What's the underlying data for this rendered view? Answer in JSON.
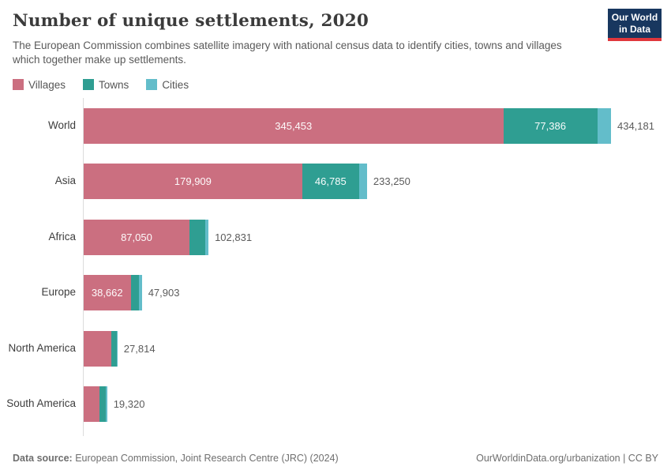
{
  "header": {
    "title": "Number of unique settlements, 2020",
    "subtitle": "The European Commission combines satellite imagery with national census data to identify cities, towns and villages which together make up settlements."
  },
  "logo": {
    "line1": "Our World",
    "line2": "in Data"
  },
  "legend": {
    "items": [
      {
        "label": "Villages",
        "color": "#cb6f80"
      },
      {
        "label": "Towns",
        "color": "#2f9e92"
      },
      {
        "label": "Cities",
        "color": "#63bdca"
      }
    ]
  },
  "colors": {
    "villages": "#cb6f80",
    "towns": "#2f9e92",
    "cities": "#63bdca",
    "axis_line": "#dcdcdc",
    "logo_navy": "#18375f",
    "logo_red": "#e0373c"
  },
  "chart_data": {
    "type": "bar",
    "orientation": "horizontal",
    "stacked": true,
    "title": "Number of unique settlements, 2020",
    "categories": [
      "World",
      "Asia",
      "Africa",
      "Europe",
      "North America",
      "South America"
    ],
    "series": [
      {
        "name": "Villages",
        "color": "#cb6f80",
        "values": [
          345453,
          179909,
          87050,
          38662,
          22700,
          13200
        ]
      },
      {
        "name": "Towns",
        "color": "#2f9e92",
        "values": [
          77386,
          46785,
          12900,
          7000,
          4600,
          4900
        ]
      },
      {
        "name": "Cities",
        "color": "#63bdca",
        "values": [
          11342,
          6556,
          2881,
          2241,
          514,
          1220
        ]
      }
    ],
    "totals": [
      434181,
      233250,
      102831,
      47903,
      27814,
      19320
    ],
    "segment_labels": [
      [
        "345,453",
        "77,386",
        null
      ],
      [
        "179,909",
        "46,785",
        null
      ],
      [
        "87,050",
        null,
        null
      ],
      [
        "38,662",
        null,
        null
      ],
      [
        null,
        null,
        null
      ],
      [
        null,
        null,
        null
      ]
    ],
    "total_labels": [
      "434,181",
      "233,250",
      "102,831",
      "47,903",
      "27,814",
      "19,320"
    ],
    "xlim": [
      0,
      434181
    ],
    "legend_position": "top",
    "grid": false
  },
  "footer": {
    "source_label": "Data source:",
    "source_text": " European Commission, Joint Research Centre (JRC) (2024)",
    "link_text": "OurWorldinData.org/urbanization | CC BY"
  }
}
